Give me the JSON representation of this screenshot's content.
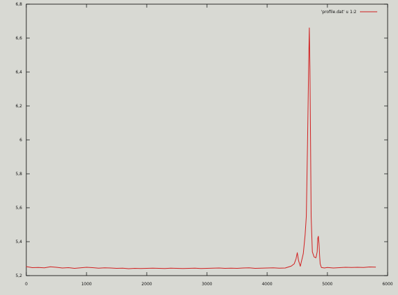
{
  "chart_data": {
    "type": "line",
    "title": "",
    "xlabel": "",
    "ylabel": "",
    "xlim": [
      0,
      6000
    ],
    "ylim": [
      5.2,
      6.8
    ],
    "grid": false,
    "legend_position": "top-right",
    "x_ticks": [
      0,
      1000,
      2000,
      3000,
      4000,
      5000,
      6000
    ],
    "x_tick_labels": [
      "0",
      "1000",
      "2000",
      "3000",
      "4000",
      "5000",
      "6000"
    ],
    "y_ticks": [
      5.2,
      5.4,
      5.6,
      5.8,
      6.0,
      6.2,
      6.4,
      6.6,
      6.8
    ],
    "y_tick_labels": [
      "5,2",
      "5,4",
      "5,6",
      "5,8",
      "6",
      "6,2",
      "6,4",
      "6,6",
      "6,8"
    ],
    "series": [
      {
        "name": "'profile.dat' u 1:2",
        "color": "#d11f1f",
        "x": [
          0,
          100,
          200,
          300,
          400,
          500,
          600,
          700,
          800,
          900,
          1000,
          1100,
          1200,
          1300,
          1400,
          1500,
          1600,
          1700,
          1800,
          1900,
          2000,
          2100,
          2200,
          2300,
          2400,
          2500,
          2600,
          2700,
          2800,
          2900,
          3000,
          3100,
          3200,
          3300,
          3400,
          3500,
          3600,
          3700,
          3800,
          3900,
          4000,
          4100,
          4200,
          4300,
          4400,
          4450,
          4480,
          4500,
          4520,
          4550,
          4600,
          4630,
          4650,
          4670,
          4690,
          4700,
          4710,
          4720,
          4730,
          4750,
          4780,
          4810,
          4830,
          4840,
          4850,
          4860,
          4870,
          4880,
          4900,
          4950,
          5000,
          5100,
          5200,
          5300,
          5400,
          5500,
          5600,
          5700,
          5800
        ],
        "values": [
          5.253,
          5.247,
          5.248,
          5.246,
          5.252,
          5.249,
          5.245,
          5.247,
          5.243,
          5.246,
          5.249,
          5.247,
          5.244,
          5.246,
          5.245,
          5.243,
          5.244,
          5.241,
          5.243,
          5.242,
          5.243,
          5.244,
          5.243,
          5.242,
          5.244,
          5.243,
          5.242,
          5.243,
          5.244,
          5.242,
          5.243,
          5.244,
          5.245,
          5.243,
          5.244,
          5.243,
          5.245,
          5.246,
          5.243,
          5.244,
          5.245,
          5.246,
          5.244,
          5.245,
          5.256,
          5.27,
          5.3,
          5.335,
          5.29,
          5.255,
          5.33,
          5.44,
          5.55,
          5.98,
          6.47,
          6.66,
          6.42,
          6.0,
          5.55,
          5.34,
          5.31,
          5.305,
          5.34,
          5.42,
          5.432,
          5.39,
          5.32,
          5.27,
          5.248,
          5.245,
          5.248,
          5.245,
          5.247,
          5.249,
          5.248,
          5.249,
          5.248,
          5.251,
          5.25
        ]
      }
    ]
  }
}
